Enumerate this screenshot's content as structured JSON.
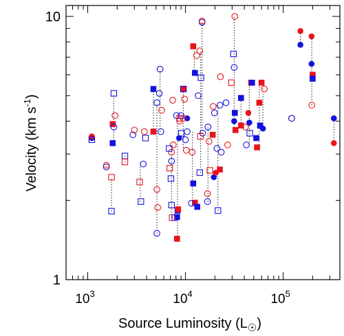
{
  "chart_data": {
    "type": "scatter",
    "title": "",
    "xlabel": "Source Luminosity (L",
    "xlabel_sub": "☉",
    "ylabel": "Velocity (km s",
    "ylabel_sup": "-1",
    "ylabel_end": ")",
    "x_scale": "log",
    "y_scale": "log",
    "xlim": [
      600,
      380000
    ],
    "ylim": [
      1,
      11
    ],
    "x_ticks": [
      {
        "value": 1000,
        "base": "10",
        "exp": "3"
      },
      {
        "value": 10000,
        "base": "10",
        "exp": "4"
      },
      {
        "value": 100000,
        "base": "10",
        "exp": "5"
      }
    ],
    "y_ticks": [
      {
        "value": 1,
        "label": "1"
      },
      {
        "value": 10,
        "label": "10"
      }
    ],
    "grid": false,
    "legend": "none",
    "colors": {
      "red": "#e8141c",
      "blue": "#1212e0"
    },
    "series": [
      {
        "marker": "filled-circle",
        "points": [
          {
            "x": 1100,
            "y": 3.45,
            "c": "blue"
          },
          {
            "x": 1100,
            "y": 3.5,
            "c": "red"
          },
          {
            "x": 8600,
            "y": 3.45,
            "c": "blue"
          },
          {
            "x": 10400,
            "y": 4.1,
            "c": "blue"
          },
          {
            "x": 31500,
            "y": 4.0,
            "c": "blue"
          },
          {
            "x": 44000,
            "y": 4.3,
            "c": "red"
          },
          {
            "x": 45000,
            "y": 3.95,
            "c": "blue"
          },
          {
            "x": 62000,
            "y": 3.75,
            "c": "blue"
          },
          {
            "x": 150000,
            "y": 7.8,
            "c": "blue"
          },
          {
            "x": 150000,
            "y": 8.8,
            "c": "red"
          },
          {
            "x": 195000,
            "y": 8.4,
            "c": "red"
          },
          {
            "x": 195000,
            "y": 6.6,
            "c": "blue"
          },
          {
            "x": 330000,
            "y": 4.1,
            "c": "blue"
          },
          {
            "x": 330000,
            "y": 3.3,
            "c": "red"
          },
          {
            "x": 19500,
            "y": 2.45,
            "c": "blue"
          },
          {
            "x": 20500,
            "y": 2.55,
            "c": "red"
          }
        ]
      },
      {
        "marker": "filled-square",
        "points": [
          {
            "x": 1800,
            "y": 3.3,
            "c": "blue"
          },
          {
            "x": 1800,
            "y": 3.9,
            "c": "red"
          },
          {
            "x": 4700,
            "y": 5.3,
            "c": "blue"
          },
          {
            "x": 4700,
            "y": 3.65,
            "c": "red"
          },
          {
            "x": 8200,
            "y": 1.73,
            "c": "blue"
          },
          {
            "x": 8300,
            "y": 1.83,
            "c": "blue"
          },
          {
            "x": 8400,
            "y": 1.85,
            "c": "red"
          },
          {
            "x": 8200,
            "y": 1.43,
            "c": "red"
          },
          {
            "x": 9600,
            "y": 5.3,
            "c": "red"
          },
          {
            "x": 12000,
            "y": 7.7,
            "c": "red"
          },
          {
            "x": 12500,
            "y": 6.1,
            "c": "blue"
          },
          {
            "x": 12000,
            "y": 2.32,
            "c": "blue"
          },
          {
            "x": 12500,
            "y": 1.96,
            "c": "red"
          },
          {
            "x": 13200,
            "y": 1.89,
            "c": "blue"
          },
          {
            "x": 19000,
            "y": 3.55,
            "c": "red"
          },
          {
            "x": 22500,
            "y": 2.62,
            "c": "red"
          },
          {
            "x": 32000,
            "y": 4.3,
            "c": "blue"
          },
          {
            "x": 32500,
            "y": 3.7,
            "c": "red"
          },
          {
            "x": 37000,
            "y": 4.9,
            "c": "blue"
          },
          {
            "x": 37000,
            "y": 3.85,
            "c": "red"
          },
          {
            "x": 47000,
            "y": 5.6,
            "c": "red"
          },
          {
            "x": 48000,
            "y": 5.6,
            "c": "blue"
          },
          {
            "x": 53000,
            "y": 3.45,
            "c": "blue"
          },
          {
            "x": 54000,
            "y": 3.18,
            "c": "red"
          },
          {
            "x": 57000,
            "y": 4.7,
            "c": "red"
          },
          {
            "x": 58000,
            "y": 3.85,
            "c": "blue"
          },
          {
            "x": 60000,
            "y": 5.6,
            "c": "red"
          },
          {
            "x": 200000,
            "y": 6.0,
            "c": "red"
          },
          {
            "x": 200000,
            "y": 5.8,
            "c": "blue"
          }
        ]
      },
      {
        "marker": "open-circle",
        "points": [
          {
            "x": 1550,
            "y": 2.68,
            "c": "blue"
          },
          {
            "x": 1550,
            "y": 2.72,
            "c": "red"
          },
          {
            "x": 1850,
            "y": 3.8,
            "c": "blue"
          },
          {
            "x": 1900,
            "y": 4.2,
            "c": "red"
          },
          {
            "x": 2900,
            "y": 3.55,
            "c": "blue"
          },
          {
            "x": 3000,
            "y": 3.7,
            "c": "red"
          },
          {
            "x": 3700,
            "y": 2.75,
            "c": "blue"
          },
          {
            "x": 3800,
            "y": 3.65,
            "c": "red"
          },
          {
            "x": 5100,
            "y": 1.5,
            "c": "blue"
          },
          {
            "x": 5100,
            "y": 2.2,
            "c": "red"
          },
          {
            "x": 5100,
            "y": 4.7,
            "c": "blue"
          },
          {
            "x": 5400,
            "y": 5.1,
            "c": "blue"
          },
          {
            "x": 5500,
            "y": 6.3,
            "c": "blue"
          },
          {
            "x": 5600,
            "y": 3.65,
            "c": "blue"
          },
          {
            "x": 5700,
            "y": 4.4,
            "c": "red"
          },
          {
            "x": 5200,
            "y": 1.88,
            "c": "red"
          },
          {
            "x": 7200,
            "y": 2.82,
            "c": "blue"
          },
          {
            "x": 7200,
            "y": 3.05,
            "c": "red"
          },
          {
            "x": 7400,
            "y": 4.8,
            "c": "red"
          },
          {
            "x": 7500,
            "y": 3.25,
            "c": "red"
          },
          {
            "x": 8100,
            "y": 4.2,
            "c": "blue"
          },
          {
            "x": 8700,
            "y": 4.0,
            "c": "red"
          },
          {
            "x": 9000,
            "y": 4.2,
            "c": "blue"
          },
          {
            "x": 9500,
            "y": 4.1,
            "c": "red"
          },
          {
            "x": 9800,
            "y": 4.85,
            "c": "red"
          },
          {
            "x": 10000,
            "y": 3.4,
            "c": "blue"
          },
          {
            "x": 10200,
            "y": 3.1,
            "c": "red"
          },
          {
            "x": 10400,
            "y": 3.65,
            "c": "blue"
          },
          {
            "x": 11500,
            "y": 1.95,
            "c": "blue"
          },
          {
            "x": 11700,
            "y": 3.05,
            "c": "red"
          },
          {
            "x": 13000,
            "y": 7.1,
            "c": "red"
          },
          {
            "x": 13500,
            "y": 5.0,
            "c": "blue"
          },
          {
            "x": 14000,
            "y": 7.4,
            "c": "red"
          },
          {
            "x": 14800,
            "y": 9.5,
            "c": "blue"
          },
          {
            "x": 14800,
            "y": 9.6,
            "c": "red"
          },
          {
            "x": 15000,
            "y": 3.6,
            "c": "blue"
          },
          {
            "x": 16800,
            "y": 1.98,
            "c": "blue"
          },
          {
            "x": 16800,
            "y": 2.12,
            "c": "red"
          },
          {
            "x": 17000,
            "y": 3.8,
            "c": "blue"
          },
          {
            "x": 17400,
            "y": 3.35,
            "c": "red"
          },
          {
            "x": 19200,
            "y": 4.55,
            "c": "red"
          },
          {
            "x": 19800,
            "y": 4.3,
            "c": "blue"
          },
          {
            "x": 21000,
            "y": 3.15,
            "c": "blue"
          },
          {
            "x": 22500,
            "y": 4.6,
            "c": "blue"
          },
          {
            "x": 22800,
            "y": 5.9,
            "c": "red"
          },
          {
            "x": 23200,
            "y": 3.05,
            "c": "blue"
          },
          {
            "x": 31500,
            "y": 6.4,
            "c": "blue"
          },
          {
            "x": 32000,
            "y": 10.0,
            "c": "red"
          },
          {
            "x": 41000,
            "y": 3.8,
            "c": "red"
          },
          {
            "x": 42000,
            "y": 3.25,
            "c": "blue"
          },
          {
            "x": 64000,
            "y": 5.3,
            "c": "red"
          },
          {
            "x": 122000,
            "y": 4.1,
            "c": "red"
          },
          {
            "x": 122000,
            "y": 4.1,
            "c": "blue"
          },
          {
            "x": 196000,
            "y": 4.6,
            "c": "red"
          },
          {
            "x": 26000,
            "y": 4.7,
            "c": "blue"
          },
          {
            "x": 27000,
            "y": 3.25,
            "c": "red"
          }
        ]
      },
      {
        "marker": "open-square",
        "points": [
          {
            "x": 1100,
            "y": 3.4,
            "c": "blue"
          },
          {
            "x": 1750,
            "y": 1.82,
            "c": "blue"
          },
          {
            "x": 1750,
            "y": 2.45,
            "c": "red"
          },
          {
            "x": 1850,
            "y": 5.1,
            "c": "blue"
          },
          {
            "x": 2400,
            "y": 2.95,
            "c": "blue"
          },
          {
            "x": 2400,
            "y": 2.8,
            "c": "red"
          },
          {
            "x": 3400,
            "y": 2.35,
            "c": "red"
          },
          {
            "x": 3500,
            "y": 1.98,
            "c": "blue"
          },
          {
            "x": 3900,
            "y": 3.45,
            "c": "blue"
          },
          {
            "x": 6800,
            "y": 3.15,
            "c": "blue"
          },
          {
            "x": 6900,
            "y": 2.65,
            "c": "red"
          },
          {
            "x": 7100,
            "y": 2.42,
            "c": "blue"
          },
          {
            "x": 7200,
            "y": 1.92,
            "c": "blue"
          },
          {
            "x": 7300,
            "y": 1.72,
            "c": "red"
          },
          {
            "x": 7800,
            "y": 1.72,
            "c": "blue"
          },
          {
            "x": 8700,
            "y": 4.1,
            "c": "red"
          },
          {
            "x": 9100,
            "y": 3.6,
            "c": "blue"
          },
          {
            "x": 9500,
            "y": 5.3,
            "c": "blue"
          },
          {
            "x": 14000,
            "y": 2.55,
            "c": "blue"
          },
          {
            "x": 14200,
            "y": 3.5,
            "c": "red"
          },
          {
            "x": 14400,
            "y": 5.85,
            "c": "blue"
          },
          {
            "x": 17800,
            "y": 2.6,
            "c": "red"
          },
          {
            "x": 21500,
            "y": 1.83,
            "c": "blue"
          },
          {
            "x": 29500,
            "y": 5.6,
            "c": "red"
          },
          {
            "x": 31000,
            "y": 7.2,
            "c": "blue"
          },
          {
            "x": 45500,
            "y": 3.6,
            "c": "blue"
          }
        ]
      }
    ],
    "connectors": [
      {
        "x": 1100,
        "y1": 3.4,
        "y2": 3.5
      },
      {
        "x": 1550,
        "y1": 2.68,
        "y2": 2.72
      },
      {
        "x": 1750,
        "y1": 1.82,
        "y2": 2.45
      },
      {
        "x": 1850,
        "y1": 3.3,
        "y2": 5.1
      },
      {
        "x": 2400,
        "y1": 2.8,
        "y2": 2.95
      },
      {
        "x": 3450,
        "y1": 1.98,
        "y2": 2.75
      },
      {
        "x": 4700,
        "y1": 3.65,
        "y2": 5.3
      },
      {
        "x": 5100,
        "y1": 1.5,
        "y2": 4.7
      },
      {
        "x": 5500,
        "y1": 3.65,
        "y2": 6.3
      },
      {
        "x": 7200,
        "y1": 1.72,
        "y2": 3.25
      },
      {
        "x": 8300,
        "y1": 1.43,
        "y2": 4.2
      },
      {
        "x": 9500,
        "y1": 3.1,
        "y2": 5.3
      },
      {
        "x": 11800,
        "y1": 1.95,
        "y2": 3.65
      },
      {
        "x": 12300,
        "y1": 6.1,
        "y2": 7.7
      },
      {
        "x": 14300,
        "y1": 2.55,
        "y2": 7.4
      },
      {
        "x": 14800,
        "y1": 3.6,
        "y2": 9.6
      },
      {
        "x": 17000,
        "y1": 1.98,
        "y2": 3.8
      },
      {
        "x": 21500,
        "y1": 1.83,
        "y2": 4.6
      },
      {
        "x": 31500,
        "y1": 3.7,
        "y2": 10.0
      },
      {
        "x": 37000,
        "y1": 3.85,
        "y2": 4.9
      },
      {
        "x": 45000,
        "y1": 3.25,
        "y2": 5.6
      },
      {
        "x": 57000,
        "y1": 3.18,
        "y2": 5.6
      },
      {
        "x": 62000,
        "y1": 3.75,
        "y2": 5.6
      },
      {
        "x": 150000,
        "y1": 7.8,
        "y2": 8.8
      },
      {
        "x": 196000,
        "y1": 4.6,
        "y2": 8.4
      },
      {
        "x": 330000,
        "y1": 3.3,
        "y2": 4.1
      }
    ]
  }
}
